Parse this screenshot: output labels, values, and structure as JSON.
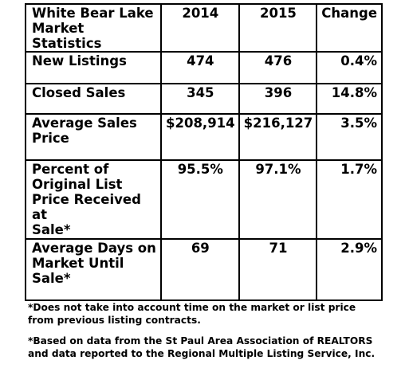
{
  "table": {
    "header": {
      "title": "White Bear Lake\nMarket Statistics",
      "col1": "2014",
      "col2": "2015",
      "col3": "Change"
    },
    "rows": [
      {
        "label": "New Listings",
        "v2014": "474",
        "v2015": "476",
        "change": "0.4%"
      },
      {
        "label": "Closed Sales",
        "v2014": "345",
        "v2015": "396",
        "change": "14.8%"
      },
      {
        "label": "Average Sales\nPrice",
        "v2014": "$208,914",
        "v2015": "$216,127",
        "change": "3.5%"
      },
      {
        "label": "Percent of\nOriginal List\nPrice Received at\nSale*",
        "v2014": "95.5%",
        "v2015": "97.1%",
        "change": "1.7%"
      },
      {
        "label": "Average Days on\nMarket Until\nSale*",
        "v2014": "69",
        "v2015": "71",
        "change": "2.9%"
      }
    ]
  },
  "notes": {
    "note1": "*Does not take into account time on the market or list price\nfrom previous listing contracts.",
    "note2": "*Based on data from the St Paul Area Association of REALTORS\nand data reported to the Regional Multiple Listing Service, Inc."
  }
}
